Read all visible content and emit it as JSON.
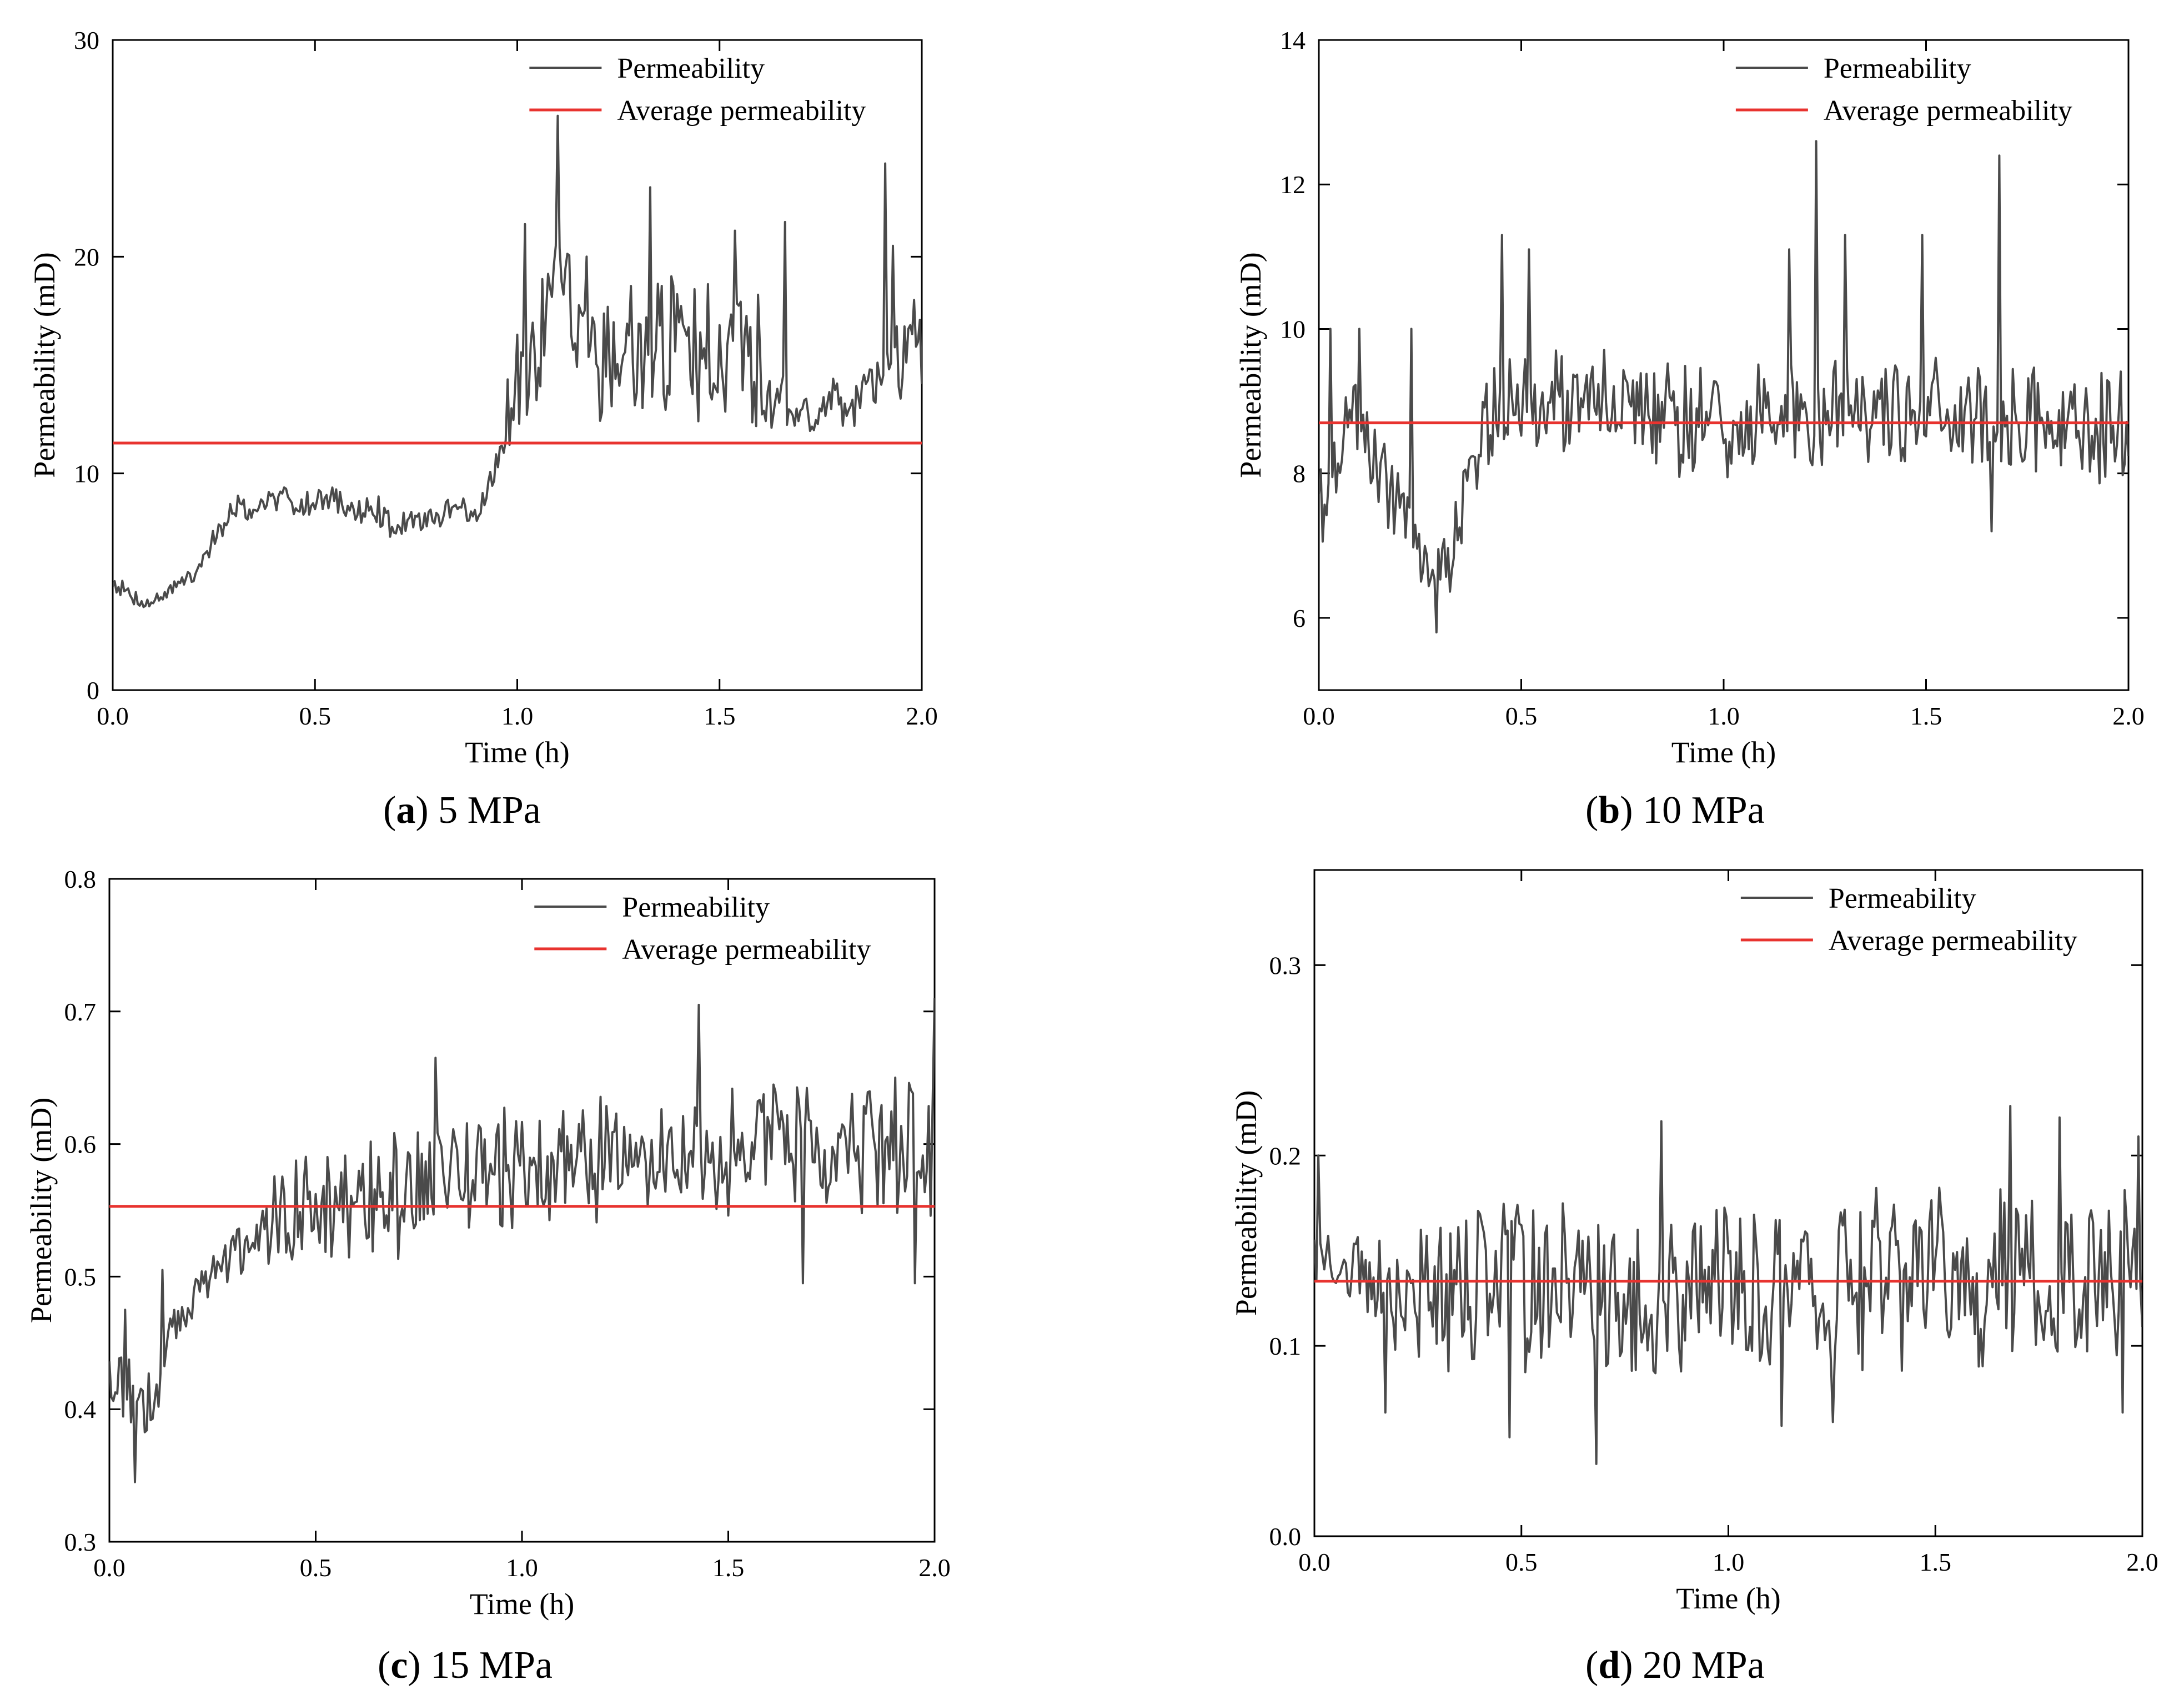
{
  "figure": {
    "colors": {
      "series": "#4a4a4a",
      "average": "#e8332f",
      "axis": "#000000",
      "background": "#ffffff"
    }
  },
  "chart_data": [
    {
      "type": "line",
      "panel": "a",
      "caption_letter": "a",
      "caption_text": "5 MPa",
      "xlabel": "Time (h)",
      "ylabel": "Permeability (mD)",
      "xlim": [
        0,
        2.0
      ],
      "ylim": [
        0,
        30
      ],
      "xticks": [
        0.0,
        0.5,
        1.0,
        1.5,
        2.0
      ],
      "xtick_labels": [
        "0.0",
        "0.5",
        "1.0",
        "1.5",
        "2.0"
      ],
      "yticks": [
        0,
        10,
        20,
        30
      ],
      "ytick_labels": [
        "0",
        "10",
        "20",
        "30"
      ],
      "legend": {
        "position": "top-right",
        "entries": [
          "Permeability",
          "Average permeability"
        ]
      },
      "average": 11.4,
      "series": {
        "name": "Permeability",
        "points": [
          [
            0.0,
            5.0
          ],
          [
            0.05,
            4.3
          ],
          [
            0.1,
            4.0
          ],
          [
            0.15,
            4.8
          ],
          [
            0.2,
            5.2
          ],
          [
            0.25,
            7.0
          ],
          [
            0.3,
            8.5
          ],
          [
            0.35,
            8.3
          ],
          [
            0.4,
            8.9
          ],
          [
            0.45,
            8.7
          ],
          [
            0.5,
            8.6
          ],
          [
            0.55,
            8.9
          ],
          [
            0.6,
            8.2
          ],
          [
            0.65,
            8.4
          ],
          [
            0.7,
            7.5
          ],
          [
            0.75,
            7.8
          ],
          [
            0.8,
            8.0
          ],
          [
            0.85,
            8.4
          ],
          [
            0.9,
            8.2
          ],
          [
            0.95,
            10.5
          ],
          [
            1.0,
            14.5
          ],
          [
            1.05,
            16.0
          ],
          [
            1.1,
            18.0
          ],
          [
            1.15,
            16.5
          ],
          [
            1.2,
            15.5
          ],
          [
            1.25,
            15.8
          ],
          [
            1.3,
            16.0
          ],
          [
            1.35,
            16.2
          ],
          [
            1.4,
            15.8
          ],
          [
            1.45,
            15.5
          ],
          [
            1.5,
            16.0
          ],
          [
            1.55,
            15.5
          ],
          [
            1.6,
            15.0
          ],
          [
            1.65,
            13.5
          ],
          [
            1.7,
            13.0
          ],
          [
            1.75,
            13.2
          ],
          [
            1.8,
            13.3
          ],
          [
            1.85,
            13.5
          ],
          [
            1.9,
            14.0
          ],
          [
            1.95,
            15.5
          ],
          [
            2.0,
            15.0
          ]
        ],
        "amplitude": [
          0.4,
          0.4,
          0.4,
          0.4,
          0.4,
          0.6,
          0.6,
          0.6,
          0.6,
          0.6,
          0.6,
          0.6,
          0.7,
          0.7,
          0.7,
          0.7,
          0.7,
          0.7,
          0.7,
          0.7,
          3.0,
          3.2,
          3.2,
          3.2,
          3.2,
          3.2,
          3.2,
          3.2,
          3.2,
          3.2,
          3.2,
          3.2,
          3.2,
          1.5,
          1.3,
          1.3,
          1.3,
          1.3,
          1.5,
          3.0,
          3.0
        ],
        "spikes": [
          [
            1.0,
            16.4
          ],
          [
            1.02,
            21.5
          ],
          [
            1.1,
            26.5
          ],
          [
            1.17,
            20.0
          ],
          [
            1.33,
            23.2
          ],
          [
            1.44,
            18.5
          ],
          [
            1.54,
            21.2
          ],
          [
            1.66,
            21.6
          ],
          [
            1.91,
            24.3
          ],
          [
            1.93,
            20.5
          ],
          [
            1.98,
            18.0
          ]
        ],
        "seed": 7
      }
    },
    {
      "type": "line",
      "panel": "b",
      "caption_letter": "b",
      "caption_text": "10 MPa",
      "xlabel": "Time (h)",
      "ylabel": "Permeability (mD)",
      "xlim": [
        0,
        2.0
      ],
      "ylim": [
        5,
        14
      ],
      "xticks": [
        0.0,
        0.5,
        1.0,
        1.5,
        2.0
      ],
      "xtick_labels": [
        "0.0",
        "0.5",
        "1.0",
        "1.5",
        "2.0"
      ],
      "yticks": [
        6,
        8,
        10,
        12,
        14
      ],
      "ytick_labels": [
        "6",
        "8",
        "10",
        "12",
        "14"
      ],
      "legend": {
        "position": "top-right",
        "entries": [
          "Permeability",
          "Average permeability"
        ]
      },
      "average": 8.7,
      "series": {
        "name": "Permeability",
        "points": [
          [
            0.0,
            7.5
          ],
          [
            0.05,
            8.5
          ],
          [
            0.1,
            8.8
          ],
          [
            0.15,
            8.0
          ],
          [
            0.2,
            7.6
          ],
          [
            0.25,
            7.0
          ],
          [
            0.3,
            6.5
          ],
          [
            0.35,
            7.3
          ],
          [
            0.4,
            8.5
          ],
          [
            0.45,
            9.0
          ],
          [
            0.5,
            9.0
          ],
          [
            0.55,
            8.8
          ],
          [
            0.6,
            9.0
          ],
          [
            0.7,
            9.0
          ],
          [
            0.8,
            8.8
          ],
          [
            0.9,
            8.7
          ],
          [
            1.0,
            8.7
          ],
          [
            1.1,
            8.8
          ],
          [
            1.2,
            8.9
          ],
          [
            1.3,
            8.9
          ],
          [
            1.4,
            9.0
          ],
          [
            1.5,
            8.8
          ],
          [
            1.6,
            8.9
          ],
          [
            1.7,
            8.7
          ],
          [
            1.8,
            8.7
          ],
          [
            1.9,
            8.6
          ],
          [
            2.0,
            8.7
          ]
        ],
        "amplitude": [
          0.7,
          0.7,
          0.6,
          0.6,
          0.6,
          0.6,
          0.6,
          0.6,
          0.7,
          0.7,
          0.7,
          0.7,
          0.8,
          0.8,
          0.8,
          0.8,
          0.8,
          0.8,
          0.8,
          0.8,
          0.8,
          0.8,
          0.8,
          0.8,
          0.8,
          0.8,
          0.8
        ],
        "spikes": [
          [
            0.03,
            10.0
          ],
          [
            0.1,
            10.0
          ],
          [
            0.23,
            10.0
          ],
          [
            0.29,
            5.8
          ],
          [
            0.45,
            11.3
          ],
          [
            0.52,
            11.1
          ],
          [
            1.16,
            11.1
          ],
          [
            1.23,
            12.6
          ],
          [
            1.3,
            11.3
          ],
          [
            1.49,
            11.3
          ],
          [
            1.68,
            12.4
          ],
          [
            1.66,
            7.2
          ]
        ],
        "seed": 19
      }
    },
    {
      "type": "line",
      "panel": "c",
      "caption_letter": "c",
      "caption_text": "15 MPa",
      "xlabel": "Time (h)",
      "ylabel": "Permeability (mD)",
      "xlim": [
        0,
        2.0
      ],
      "ylim": [
        0.3,
        0.8
      ],
      "xticks": [
        0.0,
        0.5,
        1.0,
        1.5,
        2.0
      ],
      "xtick_labels": [
        "0.0",
        "0.5",
        "1.0",
        "1.5",
        "2.0"
      ],
      "yticks": [
        0.3,
        0.4,
        0.5,
        0.6,
        0.7,
        0.8
      ],
      "ytick_labels": [
        "0.3",
        "0.4",
        "0.5",
        "0.6",
        "0.7",
        "0.8"
      ],
      "legend": {
        "position": "top-right",
        "entries": [
          "Permeability",
          "Average permeability"
        ]
      },
      "average": 0.553,
      "series": {
        "name": "Permeability",
        "points": [
          [
            0.0,
            0.43
          ],
          [
            0.05,
            0.41
          ],
          [
            0.1,
            0.4
          ],
          [
            0.15,
            0.46
          ],
          [
            0.2,
            0.48
          ],
          [
            0.25,
            0.5
          ],
          [
            0.3,
            0.52
          ],
          [
            0.35,
            0.53
          ],
          [
            0.4,
            0.54
          ],
          [
            0.5,
            0.55
          ],
          [
            0.6,
            0.555
          ],
          [
            0.7,
            0.56
          ],
          [
            0.8,
            0.565
          ],
          [
            0.9,
            0.575
          ],
          [
            1.0,
            0.58
          ],
          [
            1.1,
            0.585
          ],
          [
            1.2,
            0.59
          ],
          [
            1.3,
            0.59
          ],
          [
            1.4,
            0.59
          ],
          [
            1.5,
            0.595
          ],
          [
            1.6,
            0.6
          ],
          [
            1.7,
            0.6
          ],
          [
            1.8,
            0.6
          ],
          [
            1.9,
            0.6
          ],
          [
            2.0,
            0.6
          ]
        ],
        "amplitude": [
          0.02,
          0.03,
          0.03,
          0.02,
          0.015,
          0.015,
          0.02,
          0.03,
          0.04,
          0.045,
          0.05,
          0.05,
          0.05,
          0.05,
          0.05,
          0.05,
          0.05,
          0.04,
          0.035,
          0.05,
          0.055,
          0.055,
          0.055,
          0.055,
          0.055
        ],
        "spikes": [
          [
            0.06,
            0.345
          ],
          [
            0.04,
            0.475
          ],
          [
            0.13,
            0.505
          ],
          [
            0.79,
            0.665
          ],
          [
            1.43,
            0.705
          ],
          [
            1.68,
            0.495
          ],
          [
            1.95,
            0.495
          ],
          [
            2.0,
            0.71
          ]
        ],
        "seed": 31
      }
    },
    {
      "type": "line",
      "panel": "d",
      "caption_letter": "d",
      "caption_text": "20 MPa",
      "xlabel": "Time (h)",
      "ylabel": "Permeability (mD)",
      "xlim": [
        0,
        2.0
      ],
      "ylim": [
        0.0,
        0.35
      ],
      "xticks": [
        0.0,
        0.5,
        1.0,
        1.5,
        2.0
      ],
      "xtick_labels": [
        "0.0",
        "0.5",
        "1.0",
        "1.5",
        "2.0"
      ],
      "yticks": [
        0.0,
        0.1,
        0.2,
        0.3
      ],
      "ytick_labels": [
        "0.0",
        "0.1",
        "0.2",
        "0.3"
      ],
      "legend": {
        "position": "top-right",
        "entries": [
          "Permeability",
          "Average permeability"
        ]
      },
      "average": 0.134,
      "series": {
        "name": "Permeability",
        "points": [
          [
            0.0,
            0.15
          ],
          [
            0.1,
            0.145
          ],
          [
            0.2,
            0.13
          ],
          [
            0.3,
            0.13
          ],
          [
            0.4,
            0.13
          ],
          [
            0.5,
            0.13
          ],
          [
            0.6,
            0.13
          ],
          [
            0.7,
            0.13
          ],
          [
            0.8,
            0.13
          ],
          [
            0.9,
            0.13
          ],
          [
            1.0,
            0.13
          ],
          [
            1.1,
            0.135
          ],
          [
            1.2,
            0.135
          ],
          [
            1.3,
            0.135
          ],
          [
            1.4,
            0.135
          ],
          [
            1.5,
            0.135
          ],
          [
            1.6,
            0.135
          ],
          [
            1.7,
            0.135
          ],
          [
            1.8,
            0.135
          ],
          [
            1.9,
            0.135
          ],
          [
            2.0,
            0.135
          ]
        ],
        "amplitude": [
          0.02,
          0.02,
          0.04,
          0.045,
          0.045,
          0.045,
          0.045,
          0.045,
          0.045,
          0.045,
          0.045,
          0.05,
          0.05,
          0.05,
          0.05,
          0.05,
          0.05,
          0.05,
          0.05,
          0.05,
          0.05
        ],
        "spikes": [
          [
            0.01,
            0.2
          ],
          [
            0.17,
            0.065
          ],
          [
            0.47,
            0.052
          ],
          [
            0.68,
            0.038
          ],
          [
            0.84,
            0.218
          ],
          [
            1.13,
            0.058
          ],
          [
            1.25,
            0.06
          ],
          [
            1.68,
            0.226
          ],
          [
            1.8,
            0.22
          ],
          [
            1.95,
            0.065
          ],
          [
            1.99,
            0.21
          ]
        ],
        "seed": 53
      }
    }
  ]
}
